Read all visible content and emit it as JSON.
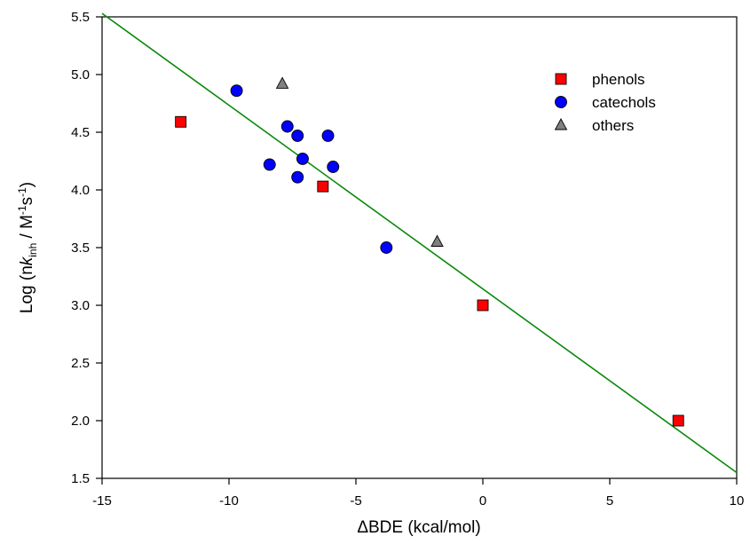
{
  "chart_data": {
    "type": "scatter",
    "xlabel": "ΔBDE (kcal/mol)",
    "ylabel": {
      "prefix": "Log (n",
      "k": "k",
      "k_sub": "inh",
      "unit": " / M",
      "m_exp": "-1",
      "s": "s",
      "s_exp": "-1",
      "suffix": ")"
    },
    "xlim": [
      -15,
      10
    ],
    "ylim": [
      1.5,
      5.5
    ],
    "xticks": [
      -15,
      -10,
      -5,
      0,
      5,
      10
    ],
    "yticks": [
      1.5,
      2.0,
      2.5,
      3.0,
      3.5,
      4.0,
      4.5,
      5.0,
      5.5
    ],
    "xtick_labels": [
      "-15",
      "-10",
      "-5",
      "0",
      "5",
      "10"
    ],
    "ytick_labels": [
      "1.5",
      "2.0",
      "2.5",
      "3.0",
      "3.5",
      "4.0",
      "4.5",
      "5.0",
      "5.5"
    ],
    "grid": false,
    "legend_placement": "top-right",
    "series": [
      {
        "name": "phenols",
        "marker": "square",
        "color": "#ff0000",
        "x": [
          -11.9,
          -6.3,
          0.0,
          7.7
        ],
        "y": [
          4.59,
          4.03,
          3.0,
          2.0
        ]
      },
      {
        "name": "catechols",
        "marker": "circle",
        "color": "#0000ff",
        "x": [
          -9.7,
          -8.4,
          -7.7,
          -7.3,
          -7.3,
          -7.1,
          -6.1,
          -5.9,
          -3.8
        ],
        "y": [
          4.86,
          4.22,
          4.55,
          4.47,
          4.11,
          4.27,
          4.47,
          4.2,
          3.5
        ]
      },
      {
        "name": "others",
        "marker": "triangle",
        "color": "#808080",
        "x": [
          -7.9,
          -1.8
        ],
        "y": [
          4.92,
          3.55
        ]
      }
    ],
    "fit_line": {
      "color": "#0a8a0a",
      "x": [
        -15,
        10
      ],
      "y": [
        5.53,
        1.55
      ]
    }
  }
}
